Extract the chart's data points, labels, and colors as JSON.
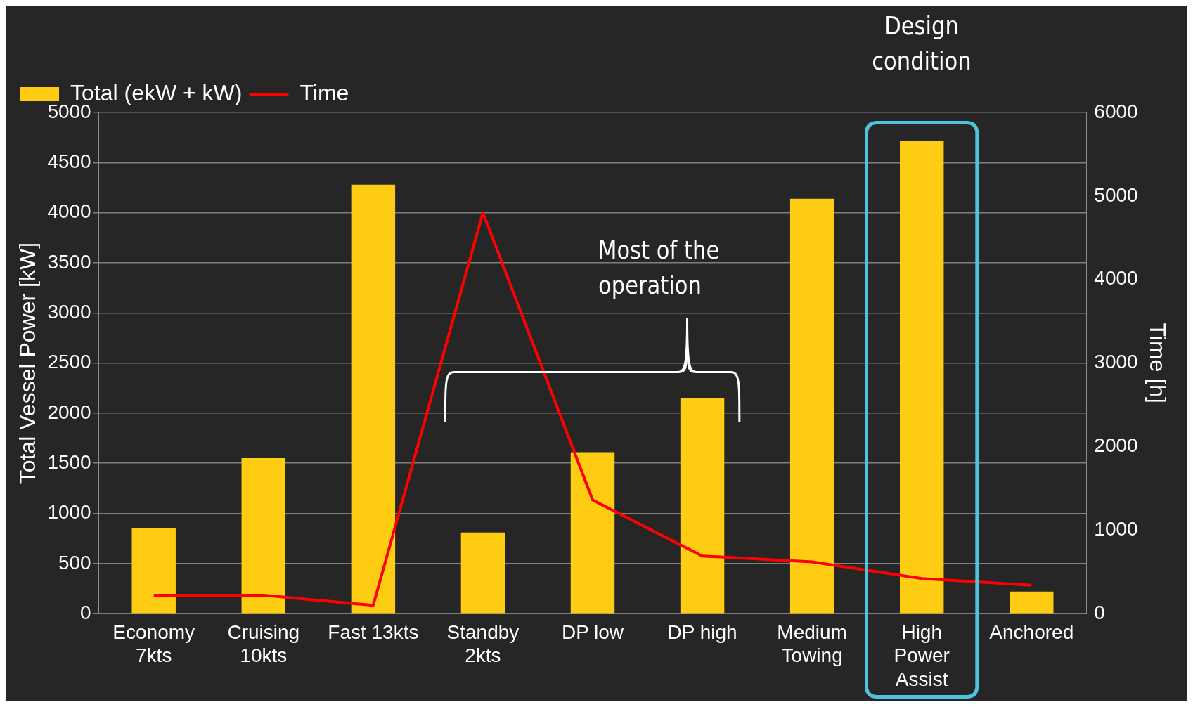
{
  "chart_data": {
    "type": "bar",
    "categories": [
      "Economy\n7kts",
      "Cruising\n10kts",
      "Fast 13kts",
      "Standby\n2kts",
      "DP low",
      "DP high",
      "Medium\nTowing",
      "High\nPower\nAssist",
      "Anchored"
    ],
    "series": [
      {
        "name": "Total (ekW + kW)",
        "color": "#ffcc14",
        "values": [
          850,
          1550,
          4280,
          810,
          1610,
          2150,
          4140,
          4720,
          220
        ]
      },
      {
        "name": "Time",
        "type": "line",
        "axis": "y2",
        "color": "#ff0000",
        "values": [
          220,
          220,
          100,
          4800,
          1360,
          690,
          620,
          420,
          340
        ]
      }
    ],
    "ylabel": "Total Vessel Power [kW]",
    "y2label": "Time [h]",
    "ylim": [
      0,
      5000
    ],
    "yticks": [
      0,
      500,
      1000,
      1500,
      2000,
      2500,
      3000,
      3500,
      4000,
      4500,
      5000
    ],
    "y2lim": [
      0,
      6000
    ],
    "y2ticks": [
      0,
      1000,
      2000,
      3000,
      4000,
      5000,
      6000
    ],
    "grid": "y",
    "legend": "top left",
    "marker": "none",
    "line_style": "solid",
    "annotations": [
      "Design condition",
      "Most of the operation"
    ]
  }
}
